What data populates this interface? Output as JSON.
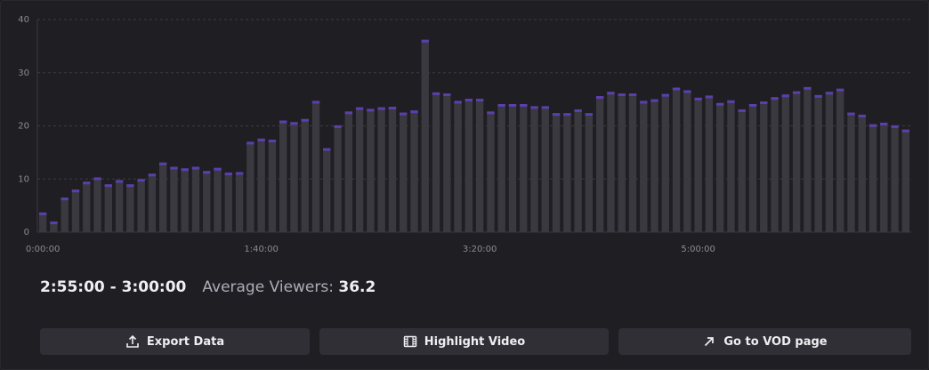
{
  "chart_data": {
    "type": "bar",
    "categories": [
      "0:00:00",
      null,
      null,
      null,
      null,
      null,
      null,
      null,
      null,
      null,
      null,
      null,
      null,
      null,
      null,
      null,
      null,
      null,
      null,
      null,
      "1:40:00",
      null,
      null,
      null,
      null,
      null,
      null,
      null,
      null,
      null,
      null,
      null,
      null,
      null,
      null,
      null,
      null,
      null,
      null,
      null,
      "3:20:00",
      null,
      null,
      null,
      null,
      null,
      null,
      null,
      null,
      null,
      null,
      null,
      null,
      null,
      null,
      null,
      null,
      null,
      null,
      null,
      "5:00:00",
      null,
      null,
      null,
      null,
      null,
      null,
      null,
      null,
      null,
      null,
      null,
      null,
      null,
      null,
      null,
      null,
      null,
      null,
      null
    ],
    "values": [
      3.7,
      2,
      6.5,
      8,
      9.5,
      10.3,
      9,
      9.8,
      9,
      10,
      11,
      13.1,
      12.3,
      12,
      12.3,
      11.5,
      12.1,
      11.2,
      11.3,
      17,
      17.6,
      17.4,
      21,
      20.7,
      21.3,
      24.7,
      15.8,
      20.1,
      22.7,
      23.5,
      23.2,
      23.5,
      23.6,
      22.5,
      22.9,
      36.2,
      26.3,
      26.1,
      24.7,
      25.1,
      25.1,
      22.7,
      24.1,
      24.1,
      24.1,
      23.7,
      23.7,
      22.4,
      22.4,
      23.1,
      22.4,
      25.6,
      26.4,
      26.1,
      26.1,
      24.7,
      25,
      26,
      27.2,
      26.7,
      25.3,
      25.7,
      24.3,
      24.8,
      23.1,
      24.1,
      24.6,
      25.4,
      25.9,
      26.5,
      27.3,
      25.8,
      26.4,
      27,
      22.5,
      22.1,
      20.3,
      20.6,
      20.1,
      19.3
    ],
    "color": "#3a393f",
    "cap_color": "#5b3fae",
    "ylim": [
      0,
      40
    ],
    "yticks": [
      0,
      10,
      20,
      30,
      40
    ],
    "grid": true
  },
  "summary": {
    "range": "2:55:00 - 3:00:00",
    "label": "Average Viewers:",
    "value": 36.2
  },
  "buttons": [
    "Export Data",
    "Highlight Video",
    "Go to VOD page"
  ]
}
